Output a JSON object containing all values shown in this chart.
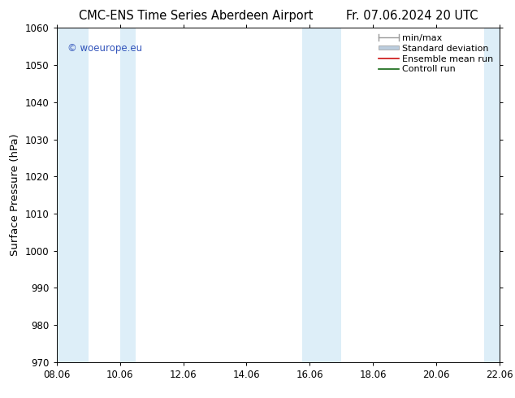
{
  "title_left": "CMC-ENS Time Series Aberdeen Airport",
  "title_right": "Fr. 07.06.2024 20 UTC",
  "ylabel": "Surface Pressure (hPa)",
  "xlabel_ticks": [
    "08.06",
    "10.06",
    "12.06",
    "14.06",
    "16.06",
    "18.06",
    "20.06",
    "22.06"
  ],
  "xlim_days": [
    0,
    14.0
  ],
  "ylim": [
    970,
    1060
  ],
  "yticks": [
    970,
    980,
    990,
    1000,
    1010,
    1020,
    1030,
    1040,
    1050,
    1060
  ],
  "shaded_bands": [
    {
      "xstart": 0.0,
      "xend": 1.0
    },
    {
      "xstart": 2.0,
      "xend": 2.5
    },
    {
      "xstart": 7.75,
      "xend": 9.0
    },
    {
      "xstart": 13.5,
      "xend": 14.0
    }
  ],
  "band_color": "#ddeef8",
  "background_color": "#ffffff",
  "watermark_text": "© woeurope.eu",
  "watermark_color": "#3355bb",
  "legend_labels": [
    "min/max",
    "Standard deviation",
    "Ensemble mean run",
    "Controll run"
  ],
  "legend_colors_line": [
    "#999999",
    "#bbccdd",
    "#cc1111",
    "#116611"
  ],
  "title_fontsize": 10.5,
  "tick_fontsize": 8.5,
  "legend_fontsize": 8,
  "ylabel_fontsize": 9.5
}
